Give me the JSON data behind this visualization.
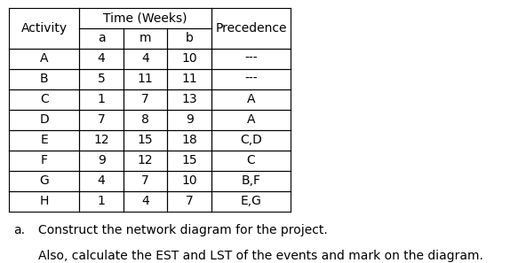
{
  "title_merged": "Time (Weeks)",
  "col_headers": [
    "Activity",
    "a",
    "m",
    "b",
    "Precedence"
  ],
  "rows": [
    [
      "A",
      "4",
      "4",
      "10",
      "---"
    ],
    [
      "B",
      "5",
      "11",
      "11",
      "---"
    ],
    [
      "C",
      "1",
      "7",
      "13",
      "A"
    ],
    [
      "D",
      "7",
      "8",
      "9",
      "A"
    ],
    [
      "E",
      "12",
      "15",
      "18",
      "C,D"
    ],
    [
      "F",
      "9",
      "12",
      "15",
      "C"
    ],
    [
      "G",
      "4",
      "7",
      "10",
      "B,F"
    ],
    [
      "H",
      "1",
      "4",
      "7",
      "E,G"
    ]
  ],
  "note_letter": "a.",
  "note_line1": "Construct the network diagram for the project.",
  "note_line2": "Also, calculate the EST and LST of the events and mark on the diagram.",
  "bg_color": "#ffffff",
  "text_color": "#000000",
  "font_size": 10,
  "note_font_size": 10
}
